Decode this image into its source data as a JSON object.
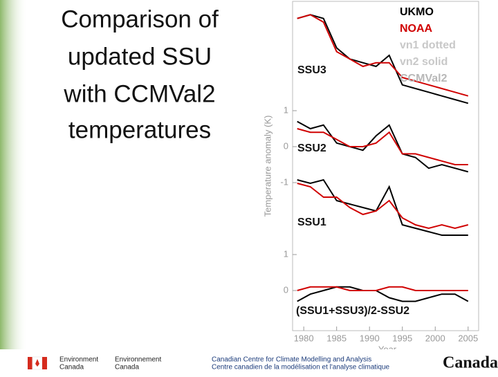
{
  "slide": {
    "title_lines": [
      "Comparison of",
      "updated SSU",
      "with CCMVal2",
      "temperatures"
    ]
  },
  "chart_data": {
    "type": "line",
    "xlabel": "Year",
    "ylabel": "Temperature anomaly (K)",
    "xlim": [
      1978.3,
      2006.6
    ],
    "xticks": [
      1980,
      1985,
      1990,
      1995,
      2000,
      2005
    ],
    "x": [
      1979,
      1981,
      1983,
      1985,
      1987,
      1989,
      1991,
      1993,
      1995,
      1997,
      1999,
      2001,
      2003,
      2005
    ],
    "legend": [
      {
        "text": "UKMO",
        "color": "#000000"
      },
      {
        "text": "NOAA",
        "color": "#d00000"
      },
      {
        "text": "vn1 dotted",
        "color": "#c8c8c8"
      },
      {
        "text": "vn2 solid",
        "color": "#c8c8c8"
      },
      {
        "text": "CCMVal2",
        "color": "#b8b8b8"
      }
    ],
    "panels": [
      {
        "label": "SSU3",
        "ylim": [
          -1.5,
          1.5
        ],
        "yticks": [],
        "series": [
          {
            "name": "UKMO",
            "color": "#000000",
            "values": [
              1.0,
              1.1,
              1.0,
              0.2,
              -0.1,
              -0.2,
              -0.3,
              0.0,
              -0.8,
              -0.9,
              -1.0,
              -1.1,
              -1.2,
              -1.3
            ]
          },
          {
            "name": "NOAA",
            "color": "#d00000",
            "values": [
              1.0,
              1.1,
              0.9,
              0.1,
              -0.1,
              -0.3,
              -0.2,
              -0.2,
              -0.6,
              -0.7,
              -0.8,
              -0.9,
              -1.0,
              -1.1
            ]
          }
        ]
      },
      {
        "label": "SSU2",
        "ylim": [
          -2,
          2
        ],
        "yticks": [
          1,
          0,
          -1
        ],
        "series": [
          {
            "name": "UKMO",
            "color": "#000000",
            "values": [
              0.7,
              0.5,
              0.6,
              0.1,
              0.0,
              -0.1,
              0.3,
              0.6,
              -0.2,
              -0.3,
              -0.6,
              -0.5,
              -0.6,
              -0.7
            ]
          },
          {
            "name": "NOAA",
            "color": "#d00000",
            "values": [
              0.5,
              0.4,
              0.4,
              0.2,
              0.0,
              0.0,
              0.1,
              0.4,
              -0.2,
              -0.2,
              -0.3,
              -0.4,
              -0.5,
              -0.5
            ]
          }
        ]
      },
      {
        "label": "SSU1",
        "ylim": [
          -1.2,
          1.2
        ],
        "yticks": [],
        "series": [
          {
            "name": "UKMO",
            "color": "#000000",
            "values": [
              1.0,
              0.9,
              1.0,
              0.4,
              0.3,
              0.2,
              0.1,
              0.8,
              -0.3,
              -0.4,
              -0.5,
              -0.6,
              -0.6,
              -0.6
            ]
          },
          {
            "name": "NOAA",
            "color": "#d00000",
            "values": [
              0.9,
              0.8,
              0.5,
              0.5,
              0.2,
              0.0,
              0.1,
              0.4,
              -0.1,
              -0.3,
              -0.4,
              -0.3,
              -0.4,
              -0.3
            ]
          }
        ]
      },
      {
        "label": "(SSU1+SSU3)/2-SSU2",
        "ylim": [
          -1,
          1
        ],
        "yticks": [
          1,
          0
        ],
        "series": [
          {
            "name": "UKMO",
            "color": "#000000",
            "values": [
              -0.3,
              -0.1,
              0.0,
              0.1,
              0.1,
              0.0,
              0.0,
              -0.2,
              -0.3,
              -0.3,
              -0.2,
              -0.1,
              -0.1,
              -0.3
            ]
          },
          {
            "name": "NOAA",
            "color": "#d00000",
            "values": [
              0.0,
              0.1,
              0.1,
              0.1,
              0.0,
              0.0,
              0.0,
              0.1,
              0.1,
              0.0,
              0.0,
              0.0,
              0.0,
              0.0
            ]
          }
        ]
      }
    ]
  },
  "footer": {
    "dept_en": [
      "Environment",
      "Canada"
    ],
    "dept_fr": [
      "Environnement",
      "Canada"
    ],
    "centre_en": "Canadian Centre for Climate Modelling and Analysis",
    "centre_fr": "Centre canadien de la modélisation et l'analyse climatique",
    "wordmark": "Canada"
  }
}
